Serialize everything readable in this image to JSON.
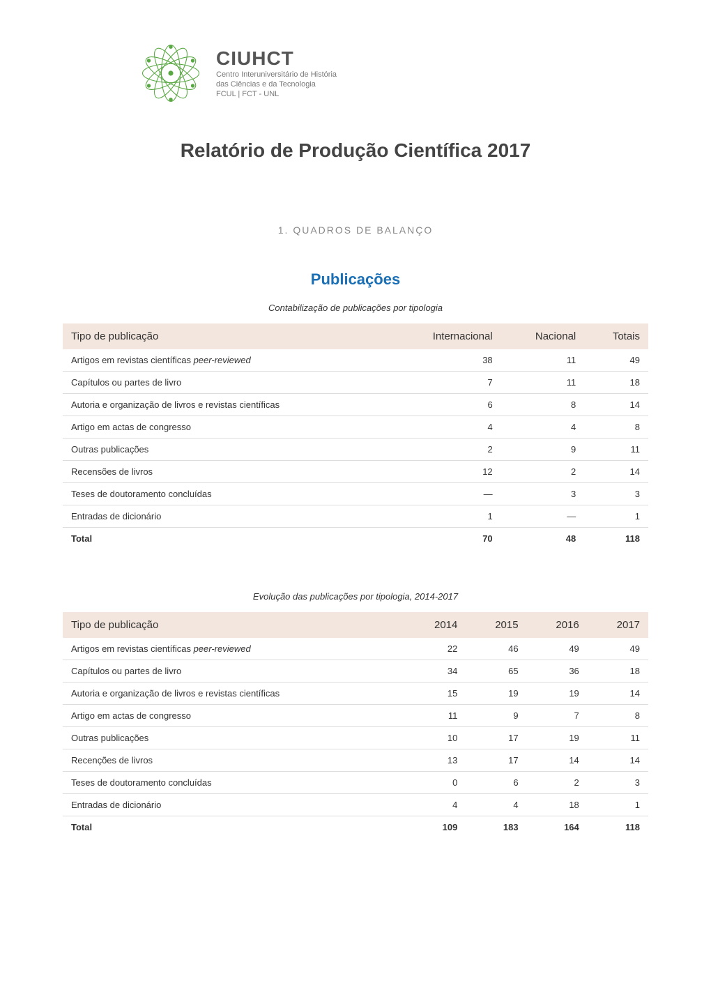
{
  "logo": {
    "title": "CIUHCT",
    "subtitle_line1": "Centro Interuniversitário de História",
    "subtitle_line2": "das Ciências e da Tecnologia",
    "subtitle_line3": "FCUL | FCT - UNL"
  },
  "page_title": "Relatório de Produção Científica 2017",
  "section_number": "1. QUADROS DE BALANÇO",
  "section_heading": "Publicações",
  "colors": {
    "heading_blue": "#1a6fb5",
    "header_bg": "#f2e6de",
    "row_border": "#dddddd",
    "text": "#333333",
    "muted": "#888888"
  },
  "table1": {
    "caption": "Contabilização de publicações por tipologia",
    "columns": [
      "Tipo de publicação",
      "Internacional",
      "Nacional",
      "Totais"
    ],
    "rows": [
      {
        "label": "Artigos em revistas científicas ",
        "italic": "peer-reviewed",
        "values": [
          "38",
          "11",
          "49"
        ]
      },
      {
        "label": "Capítulos ou partes de livro",
        "italic": "",
        "values": [
          "7",
          "11",
          "18"
        ]
      },
      {
        "label": "Autoria e organização de livros e revistas científicas",
        "italic": "",
        "values": [
          "6",
          "8",
          "14"
        ]
      },
      {
        "label": "Artigo em actas de congresso",
        "italic": "",
        "values": [
          "4",
          "4",
          "8"
        ]
      },
      {
        "label": "Outras publicações",
        "italic": "",
        "values": [
          "2",
          "9",
          "11"
        ]
      },
      {
        "label": "Recensões de livros",
        "italic": "",
        "values": [
          "12",
          "2",
          "14"
        ]
      },
      {
        "label": "Teses de doutoramento concluídas",
        "italic": "",
        "values": [
          "—",
          "3",
          "3"
        ]
      },
      {
        "label": "Entradas de dicionário",
        "italic": "",
        "values": [
          "1",
          "—",
          "1"
        ]
      }
    ],
    "total": {
      "label": "Total",
      "values": [
        "70",
        "48",
        "118"
      ]
    }
  },
  "table2": {
    "caption": "Evolução das publicações por tipologia, 2014-2017",
    "columns": [
      "Tipo de publicação",
      "2014",
      "2015",
      "2016",
      "2017"
    ],
    "rows": [
      {
        "label": "Artigos em revistas científicas ",
        "italic": "peer-reviewed",
        "values": [
          "22",
          "46",
          "49",
          "49"
        ]
      },
      {
        "label": "Capítulos ou partes de livro",
        "italic": "",
        "values": [
          "34",
          "65",
          "36",
          "18"
        ]
      },
      {
        "label": "Autoria e organização de livros e revistas científicas",
        "italic": "",
        "values": [
          "15",
          "19",
          "19",
          "14"
        ]
      },
      {
        "label": "Artigo em actas de congresso",
        "italic": "",
        "values": [
          "11",
          "9",
          "7",
          "8"
        ]
      },
      {
        "label": "Outras publicações",
        "italic": "",
        "values": [
          "10",
          "17",
          "19",
          "11"
        ]
      },
      {
        "label": "Recenções de livros",
        "italic": "",
        "values": [
          "13",
          "17",
          "14",
          "14"
        ]
      },
      {
        "label": "Teses de doutoramento concluídas",
        "italic": "",
        "values": [
          "0",
          "6",
          "2",
          "3"
        ]
      },
      {
        "label": "Entradas de dicionário",
        "italic": "",
        "values": [
          "4",
          "4",
          "18",
          "1"
        ]
      }
    ],
    "total": {
      "label": "Total",
      "values": [
        "109",
        "183",
        "164",
        "118"
      ]
    }
  }
}
